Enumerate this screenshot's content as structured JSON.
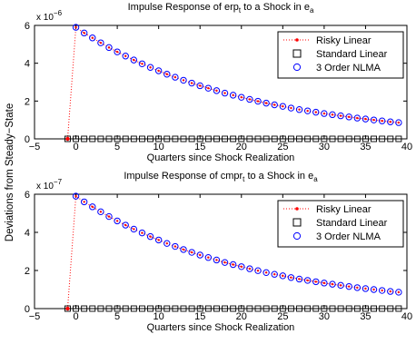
{
  "figure": {
    "ylabel": "Deviations from Steady−State"
  },
  "chart_data": [
    {
      "type": "scatter",
      "title_main": "Impulse Response of erp",
      "title_sub": "t",
      "title_mid": " to a Shock in e",
      "title_sub2": "a",
      "xlabel": "Quarters since Shock Realization",
      "ylabel": "Deviations from Steady−State",
      "exponent_base": "x 10",
      "exponent": "−6",
      "xlim": [
        -5,
        40
      ],
      "ylim": [
        0,
        6
      ],
      "xticks": [
        "−5",
        "0",
        "5",
        "10",
        "15",
        "20",
        "25",
        "30",
        "35",
        "40"
      ],
      "yticks": [
        "0",
        "2",
        "4",
        "6"
      ],
      "xtick_values": [
        -5,
        0,
        5,
        10,
        15,
        20,
        25,
        30,
        35,
        40
      ],
      "ytick_values": [
        0,
        2,
        4,
        6
      ],
      "legend_position": "top-right",
      "legend": [
        "Risky Linear",
        "Standard Linear",
        "3 Order NLMA"
      ],
      "x": [
        -1,
        0,
        1,
        2,
        3,
        4,
        5,
        6,
        7,
        8,
        9,
        10,
        11,
        12,
        13,
        14,
        15,
        16,
        17,
        18,
        19,
        20,
        21,
        22,
        23,
        24,
        25,
        26,
        27,
        28,
        29,
        30,
        31,
        32,
        33,
        34,
        35,
        36,
        37,
        38,
        39
      ],
      "series": [
        {
          "name": "Risky Linear",
          "values": [
            0,
            5.9,
            5.6,
            5.34,
            5.08,
            4.83,
            4.6,
            4.38,
            4.17,
            3.97,
            3.78,
            3.6,
            3.42,
            3.26,
            3.1,
            2.95,
            2.81,
            2.68,
            2.55,
            2.42,
            2.31,
            2.2,
            2.09,
            1.99,
            1.89,
            1.8,
            1.72,
            1.63,
            1.55,
            1.48,
            1.41,
            1.34,
            1.28,
            1.22,
            1.16,
            1.1,
            1.05,
            1.0,
            0.95,
            0.9,
            0.86
          ]
        },
        {
          "name": "Standard Linear",
          "values": [
            0,
            0,
            0,
            0,
            0,
            0,
            0,
            0,
            0,
            0,
            0,
            0,
            0,
            0,
            0,
            0,
            0,
            0,
            0,
            0,
            0,
            0,
            0,
            0,
            0,
            0,
            0,
            0,
            0,
            0,
            0,
            0,
            0,
            0,
            0,
            0,
            0,
            0,
            0,
            0,
            0
          ]
        },
        {
          "name": "3 Order NLMA",
          "values": [
            null,
            5.9,
            5.6,
            5.34,
            5.08,
            4.83,
            4.6,
            4.38,
            4.17,
            3.97,
            3.78,
            3.6,
            3.42,
            3.26,
            3.1,
            2.95,
            2.81,
            2.68,
            2.55,
            2.42,
            2.31,
            2.2,
            2.09,
            1.99,
            1.89,
            1.8,
            1.72,
            1.63,
            1.55,
            1.48,
            1.41,
            1.34,
            1.28,
            1.22,
            1.16,
            1.1,
            1.05,
            1.0,
            0.95,
            0.9,
            0.86
          ]
        }
      ]
    },
    {
      "type": "scatter",
      "title_main": "Impulse Response of cmpr",
      "title_sub": "t",
      "title_mid": " to a Shock in e",
      "title_sub2": "a",
      "xlabel": "Quarters since Shock Realization",
      "ylabel": "Deviations from Steady−State",
      "exponent_base": "x 10",
      "exponent": "−7",
      "xlim": [
        -5,
        40
      ],
      "ylim": [
        0,
        6
      ],
      "xticks": [
        "−5",
        "0",
        "5",
        "10",
        "15",
        "20",
        "25",
        "30",
        "35",
        "40"
      ],
      "yticks": [
        "0",
        "2",
        "4",
        "6"
      ],
      "xtick_values": [
        -5,
        0,
        5,
        10,
        15,
        20,
        25,
        30,
        35,
        40
      ],
      "ytick_values": [
        0,
        2,
        4,
        6
      ],
      "legend_position": "top-right",
      "legend": [
        "Risky Linear",
        "Standard Linear",
        "3 Order NLMA"
      ],
      "x": [
        -1,
        0,
        1,
        2,
        3,
        4,
        5,
        6,
        7,
        8,
        9,
        10,
        11,
        12,
        13,
        14,
        15,
        16,
        17,
        18,
        19,
        20,
        21,
        22,
        23,
        24,
        25,
        26,
        27,
        28,
        29,
        30,
        31,
        32,
        33,
        34,
        35,
        36,
        37,
        38,
        39
      ],
      "series": [
        {
          "name": "Risky Linear",
          "values": [
            0,
            5.9,
            5.6,
            5.34,
            5.08,
            4.83,
            4.6,
            4.38,
            4.17,
            3.97,
            3.78,
            3.6,
            3.42,
            3.26,
            3.1,
            2.95,
            2.81,
            2.68,
            2.55,
            2.42,
            2.31,
            2.2,
            2.09,
            1.99,
            1.89,
            1.8,
            1.72,
            1.63,
            1.55,
            1.48,
            1.41,
            1.34,
            1.28,
            1.22,
            1.16,
            1.1,
            1.05,
            1.0,
            0.95,
            0.9,
            0.86
          ]
        },
        {
          "name": "Standard Linear",
          "values": [
            0,
            0,
            0,
            0,
            0,
            0,
            0,
            0,
            0,
            0,
            0,
            0,
            0,
            0,
            0,
            0,
            0,
            0,
            0,
            0,
            0,
            0,
            0,
            0,
            0,
            0,
            0,
            0,
            0,
            0,
            0,
            0,
            0,
            0,
            0,
            0,
            0,
            0,
            0,
            0,
            0
          ]
        },
        {
          "name": "3 Order NLMA",
          "values": [
            null,
            5.9,
            5.6,
            5.34,
            5.08,
            4.83,
            4.6,
            4.38,
            4.17,
            3.97,
            3.78,
            3.6,
            3.42,
            3.26,
            3.1,
            2.95,
            2.81,
            2.68,
            2.55,
            2.42,
            2.31,
            2.2,
            2.09,
            1.99,
            1.89,
            1.8,
            1.72,
            1.63,
            1.55,
            1.48,
            1.41,
            1.34,
            1.28,
            1.22,
            1.16,
            1.1,
            1.05,
            1.0,
            0.95,
            0.9,
            0.86
          ]
        }
      ]
    }
  ],
  "colors": {
    "risky": "#ff0000",
    "standard": "#000000",
    "nlma": "#0000ff"
  }
}
